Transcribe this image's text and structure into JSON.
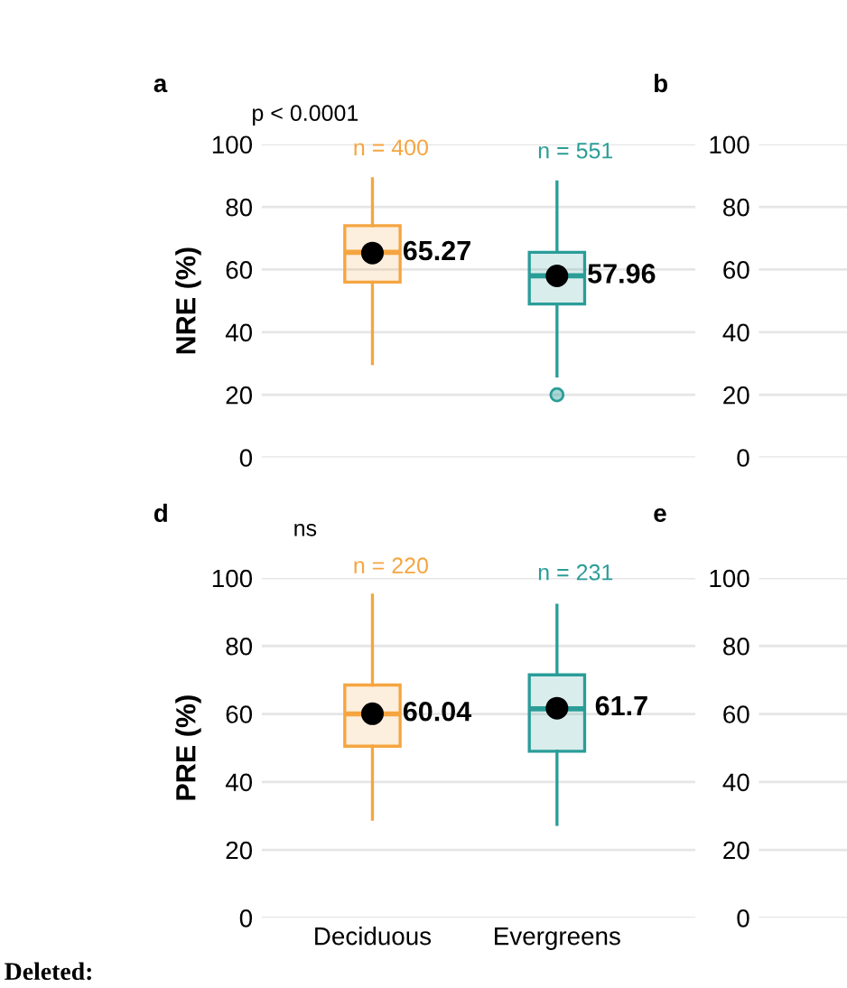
{
  "chart_data": [
    {
      "type": "box",
      "title": "a",
      "ylabel": "NRE (%)",
      "categories": [
        null,
        null
      ],
      "colors": [
        "#f5a540",
        "#2a9d98"
      ],
      "boxes": [
        {
          "low": 30,
          "q1": 56,
          "median": 65.5,
          "q3": 74,
          "high": 89,
          "mean": 65.27
        },
        {
          "low": 26,
          "q1": 49,
          "median": 58,
          "q3": 65.5,
          "high": 88,
          "mean": 57.96,
          "outliers": [
            20
          ]
        }
      ],
      "value_labels": [
        "65.27",
        "57.96"
      ],
      "ylim": [
        0,
        100
      ],
      "yticks": [
        0,
        20,
        40,
        60,
        80,
        100
      ],
      "grid": "y",
      "tick_labels": "y",
      "annotations": [
        "p < 0.0001",
        "n = 400",
        "n = 551"
      ]
    },
    {
      "type": "box",
      "title": "b",
      "categories": [
        null
      ],
      "boxes": [
        null
      ],
      "ylim": [
        0,
        100
      ],
      "yticks": [
        0,
        20,
        40,
        60,
        80,
        100
      ],
      "grid": "y",
      "tick_labels": "y"
    },
    {
      "type": "box",
      "title": "d",
      "ylabel": "PRE (%)",
      "categories": [
        "Deciduous",
        "Evergreens"
      ],
      "colors": [
        "#f5a540",
        "#2a9d98"
      ],
      "boxes": [
        {
          "low": 29,
          "q1": 50.5,
          "median": 60,
          "q3": 68.5,
          "high": 95,
          "mean": 60.04
        },
        {
          "low": 27.5,
          "q1": 49,
          "median": 61.5,
          "q3": 71.5,
          "high": 92,
          "mean": 61.7
        }
      ],
      "value_labels": [
        "60.04",
        "61.7"
      ],
      "ylim": [
        0,
        100
      ],
      "yticks": [
        0,
        20,
        40,
        60,
        80,
        100
      ],
      "grid": "y",
      "annotations": [
        "ns",
        "n = 220",
        "n = 231",
        "Deleted:"
      ]
    },
    {
      "type": "box",
      "title": "e",
      "categories": [
        null
      ],
      "boxes": [
        null
      ],
      "ylim": [
        0,
        100
      ],
      "yticks": [
        0,
        20,
        40,
        60,
        80,
        100
      ],
      "grid": "y",
      "tick_labels": "y"
    }
  ]
}
